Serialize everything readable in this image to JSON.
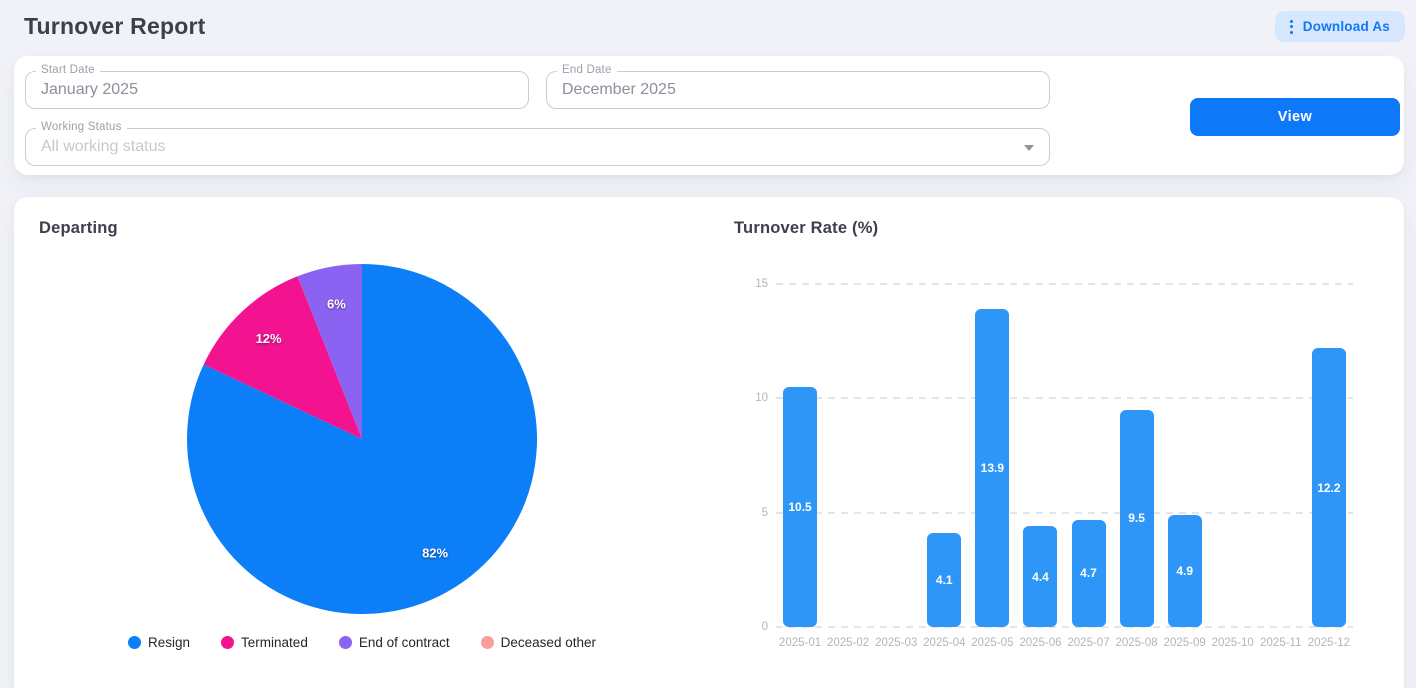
{
  "header": {
    "title": "Turnover Report",
    "download_as_label": "Download As"
  },
  "filters": {
    "start_date": {
      "label": "Start Date",
      "value": "January 2025"
    },
    "end_date": {
      "label": "End Date",
      "value": "December 2025"
    },
    "working_status": {
      "label": "Working Status",
      "placeholder": "All working status"
    },
    "view_label": "View"
  },
  "colors": {
    "primary": "#0d78f8",
    "download_chip_bg": "#d7e7fd",
    "bar_blue": "#2e96f6",
    "pie_blue": "#0b7ef8",
    "pie_pink": "#f31390",
    "pie_purple": "#8a63f2",
    "pie_salmon": "#fa9d9d"
  },
  "chart_data": [
    {
      "type": "pie",
      "title": "Departing",
      "labels": [
        "Resign",
        "Terminated",
        "End of contract",
        "Deceased other"
      ],
      "values": [
        82,
        12,
        6,
        0
      ],
      "unit": "%",
      "data_labels": [
        "82%",
        "12%",
        "6%"
      ],
      "colors": [
        "#0b7ef8",
        "#f31390",
        "#8a63f2",
        "#fa9d9d"
      ],
      "legend_position": "bottom",
      "start_angle": "top, clockwise"
    },
    {
      "type": "bar",
      "title": "Turnover Rate (%)",
      "categories": [
        "2025-01",
        "2025-02",
        "2025-03",
        "2025-04",
        "2025-05",
        "2025-06",
        "2025-07",
        "2025-08",
        "2025-09",
        "2025-10",
        "2025-11",
        "2025-12"
      ],
      "values": [
        10.5,
        0,
        0,
        4.1,
        13.9,
        4.4,
        4.7,
        9.5,
        4.9,
        0,
        0,
        12.2
      ],
      "ylim": [
        0,
        15
      ],
      "yticks": [
        0,
        5,
        10,
        15
      ],
      "bar_color": "#2e96f6",
      "grid": "horizontal dashed",
      "legend_position": "none"
    }
  ]
}
